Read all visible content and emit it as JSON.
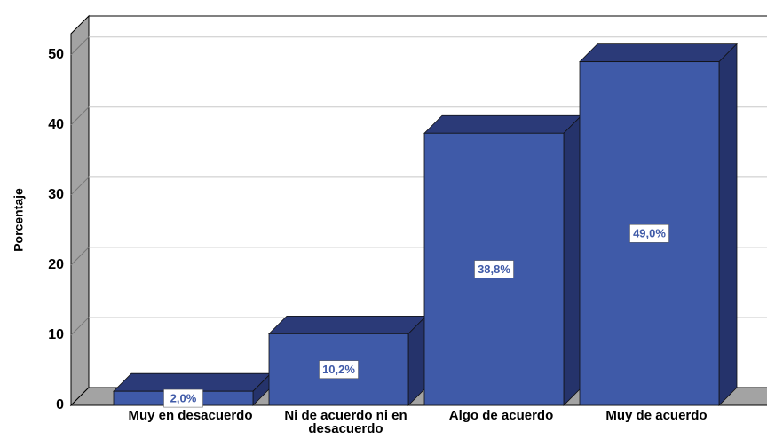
{
  "chart_data": {
    "type": "bar3d",
    "ylabel": "Porcentaje",
    "categories": [
      "Muy en desacuerdo",
      "Ni de acuerdo ni en desacuerdo",
      "Algo de acuerdo",
      "Muy de acuerdo"
    ],
    "values": [
      2.0,
      10.2,
      38.8,
      49.0
    ],
    "value_labels": [
      "2,0%",
      "10,2%",
      "38,8%",
      "49,0%"
    ],
    "color": "#3f5aa8",
    "ylim": [
      0,
      53
    ],
    "yticks": [
      0,
      10,
      20,
      30,
      40,
      50
    ],
    "grid": true
  }
}
